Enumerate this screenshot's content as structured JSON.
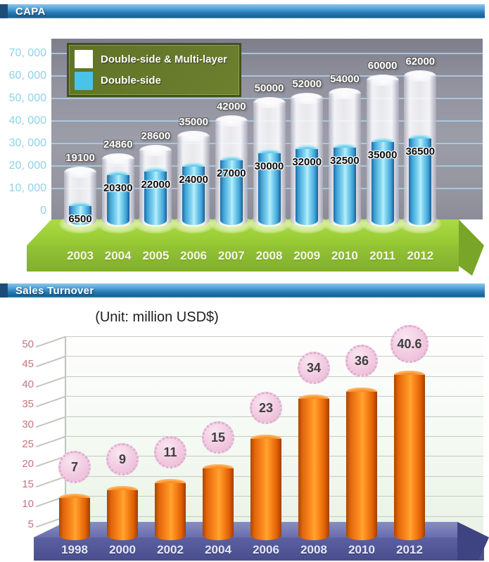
{
  "capa": {
    "header": {
      "title": "CAPA"
    },
    "y_axis": {
      "tick_labels": [
        "70, 000",
        "60, 000",
        "50, 000",
        "40, 000",
        "30, 000",
        "20, 000",
        "10, 000",
        "0"
      ],
      "tick_values": [
        70000,
        60000,
        50000,
        40000,
        30000,
        20000,
        10000,
        0
      ],
      "label_color": "#8fd2e8"
    },
    "legend": {
      "items": [
        {
          "label": "Double-side & Multi-layer",
          "swatch_color": "#ffffff"
        },
        {
          "label": "Double-side",
          "swatch_color": "#49c3e8"
        }
      ],
      "bg_color": "#65782a",
      "border_color": "#42511a"
    },
    "floor_colors": {
      "top": "#9fd03a",
      "front": "#8abb30",
      "side": "#79a528"
    }
  },
  "sales": {
    "header": {
      "title": "Sales Turnover"
    },
    "unit_label": "(Unit: million USD$)",
    "y_axis": {
      "tick_labels": [
        "50",
        "45",
        "40",
        "35",
        "30",
        "25",
        "20",
        "15",
        "10",
        "5"
      ],
      "tick_values": [
        50,
        45,
        40,
        35,
        30,
        25,
        20,
        15,
        10,
        5
      ],
      "label_color": "#c4737d"
    },
    "platform_colors": {
      "top": "#7d82ba",
      "front": "#53589b",
      "side": "#3e4382"
    },
    "badge_colors": {
      "bg": "#f1c9e0",
      "border": "#dfaed0",
      "text": "#3f3f3f"
    },
    "bar_color": "#f47a12"
  },
  "chart_data": [
    {
      "type": "bar",
      "title": "CAPA",
      "categories": [
        "2003",
        "2004",
        "2005",
        "2006",
        "2007",
        "2008",
        "2009",
        "2010",
        "2011",
        "2012"
      ],
      "series": [
        {
          "name": "Double-side & Multi-layer",
          "values": [
            19100,
            24860,
            28600,
            35000,
            42000,
            50000,
            52000,
            54000,
            60000,
            62000
          ],
          "color": "#f2f2f5"
        },
        {
          "name": "Double-side",
          "values": [
            6500,
            20300,
            22000,
            24000,
            27000,
            30000,
            32000,
            32500,
            35000,
            36500
          ],
          "color": "#49c3e8"
        }
      ],
      "ylim": [
        0,
        70000
      ],
      "ytick_step": 10000,
      "grid": true,
      "legend_position": "top-left",
      "value_labels": true,
      "style": "3d-cylinder"
    },
    {
      "type": "bar",
      "title": "Sales Turnover",
      "subtitle": "(Unit: million USD$)",
      "categories": [
        "1998",
        "2000",
        "2002",
        "2004",
        "2006",
        "2008",
        "2010",
        "2012"
      ],
      "series": [
        {
          "name": "Sales Turnover",
          "values": [
            7,
            9,
            11,
            15,
            23,
            34,
            36,
            40.6
          ],
          "color": "#f47a12"
        }
      ],
      "ylim": [
        0,
        50
      ],
      "ytick_step": 5,
      "grid": true,
      "legend_position": "none",
      "value_labels": true,
      "style": "3d-cylinder"
    }
  ]
}
